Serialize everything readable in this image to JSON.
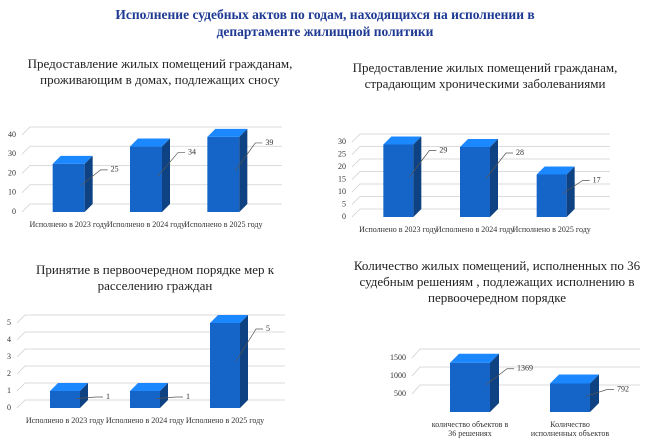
{
  "title": "Исполнение судебных актов по годам, находящихся на исполнении в департаменте жилищной политики",
  "chart_data": [
    {
      "type": "bar",
      "title": "Предоставление жилых помещений гражданам, проживающим в домах, подлежащих сносу",
      "categories": [
        "Исполнено в 2023 году",
        "Исполнено в 2024 году",
        "Исполнено в 2025 году"
      ],
      "values": [
        25,
        34,
        39
      ],
      "color": "#1565c8",
      "ylim": [
        0,
        40
      ],
      "yticks": [
        0,
        10,
        20,
        30,
        40
      ],
      "grid": true
    },
    {
      "type": "bar",
      "title": "Предоставление жилых помещений гражданам, страдающим хроническими заболеваниями",
      "categories": [
        "Исполнено в 2023 году",
        "Исполнено в 2024 году",
        "Исполнено в 2025 году"
      ],
      "values": [
        29,
        28,
        17
      ],
      "color": "#1565c8",
      "ylim": [
        0,
        30
      ],
      "yticks": [
        0,
        5,
        10,
        15,
        20,
        25,
        30
      ],
      "grid": true
    },
    {
      "type": "bar",
      "title": "Принятие в первоочередном порядке мер к расселению граждан",
      "categories": [
        "Исполнено в 2023 году",
        "Исполнено в 2024 году",
        "Исполнено в 2025 году"
      ],
      "values": [
        1,
        1,
        5
      ],
      "color": "#1565c8",
      "ylim": [
        0,
        5
      ],
      "yticks": [
        0,
        1,
        2,
        3,
        4,
        5
      ],
      "grid": true
    },
    {
      "type": "bar",
      "title": "Количество жилых помещений, исполненных по 36 судебным решениям , подлежащих исполнению в первоочередном порядке",
      "categories": [
        "количество объектов в 36 решениях",
        "Количество исполненных объектов"
      ],
      "values": [
        1369,
        792
      ],
      "color": "#1565c8",
      "ylim": [
        0,
        1500
      ],
      "yticks": [
        500,
        1000,
        1500
      ],
      "grid": true
    }
  ]
}
